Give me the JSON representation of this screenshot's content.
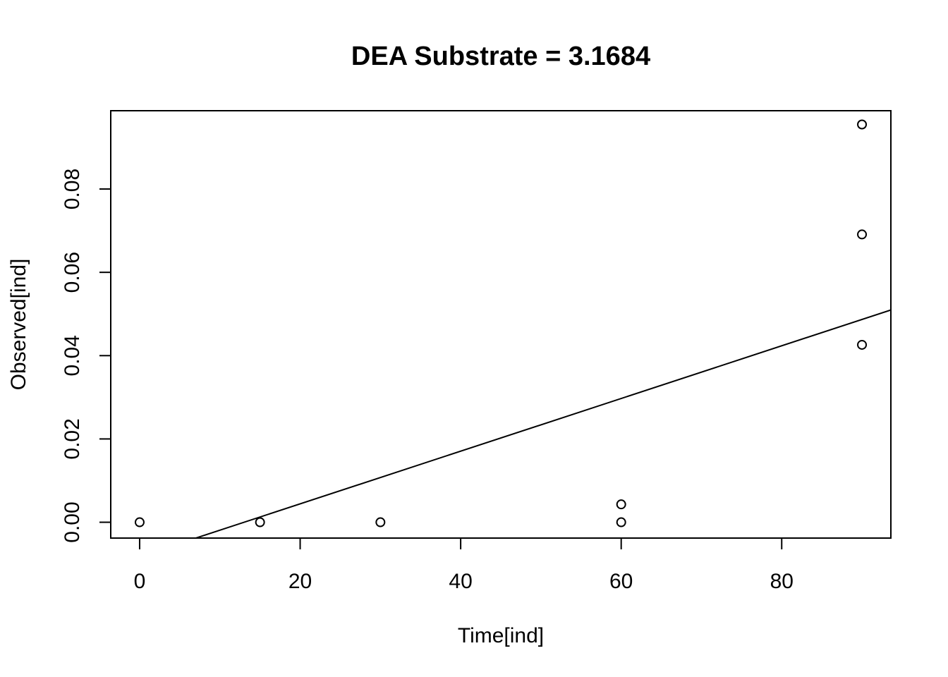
{
  "chart_data": {
    "type": "scatter",
    "title": "DEA Substrate = 3.1684",
    "xlabel": "Time[ind]",
    "ylabel": "Observed[ind]",
    "xlim": [
      -3.6,
      93.6
    ],
    "ylim": [
      -0.0038,
      0.0988
    ],
    "x_ticks": [
      0,
      20,
      40,
      60,
      80
    ],
    "x_tick_labels": [
      "0",
      "20",
      "40",
      "60",
      "80"
    ],
    "y_ticks": [
      0.0,
      0.02,
      0.04,
      0.06,
      0.08
    ],
    "y_tick_labels": [
      "0.00",
      "0.02",
      "0.04",
      "0.06",
      "0.08"
    ],
    "grid": false,
    "legend": "none",
    "series": [
      {
        "marker": "open-circle",
        "points": [
          {
            "x": 0,
            "y": 0.0
          },
          {
            "x": 15,
            "y": 0.0
          },
          {
            "x": 30,
            "y": 0.0
          },
          {
            "x": 60,
            "y": 0.0
          },
          {
            "x": 60,
            "y": 0.0043
          },
          {
            "x": 90,
            "y": 0.0426
          },
          {
            "x": 90,
            "y": 0.0691
          },
          {
            "x": 90,
            "y": 0.0955
          }
        ]
      }
    ],
    "fit_line": {
      "slope": 0.0006324,
      "intercept": -0.00823
    },
    "colors": {
      "foreground": "#000000",
      "background": "#ffffff"
    }
  }
}
